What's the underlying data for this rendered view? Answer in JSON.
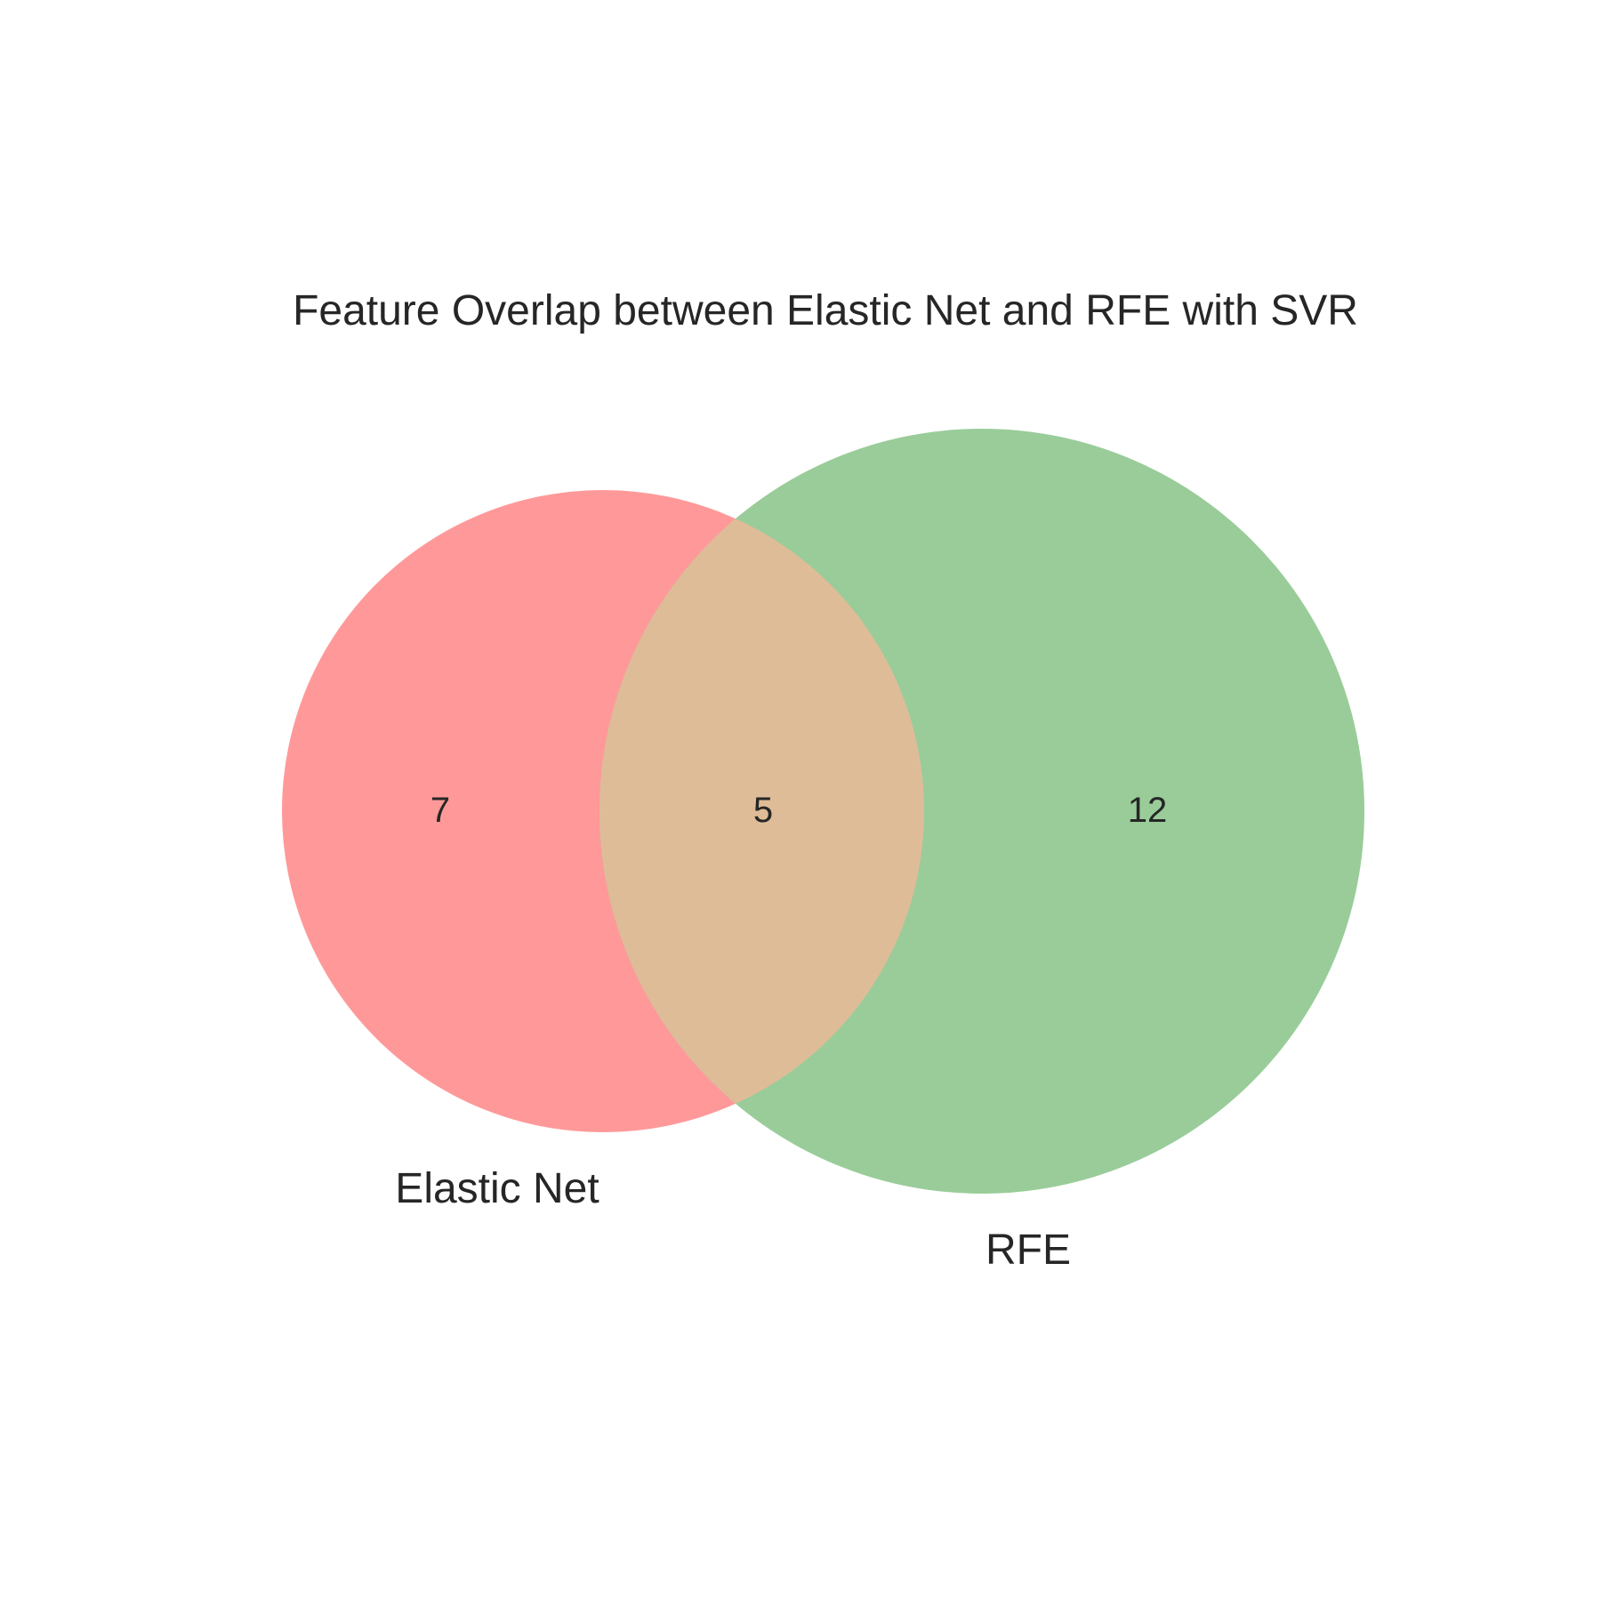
{
  "title": "Feature Overlap between Elastic Net and RFE with SVR",
  "sets": {
    "left": {
      "label": "Elastic Net",
      "only_count": "7",
      "color": "#ff9999"
    },
    "right": {
      "label": "RFE",
      "only_count": "12",
      "color": "#99cc99"
    },
    "overlap": {
      "count": "5",
      "color": "#dfbc98"
    }
  },
  "background_color": "#ffffff",
  "text_color": "#262626"
}
